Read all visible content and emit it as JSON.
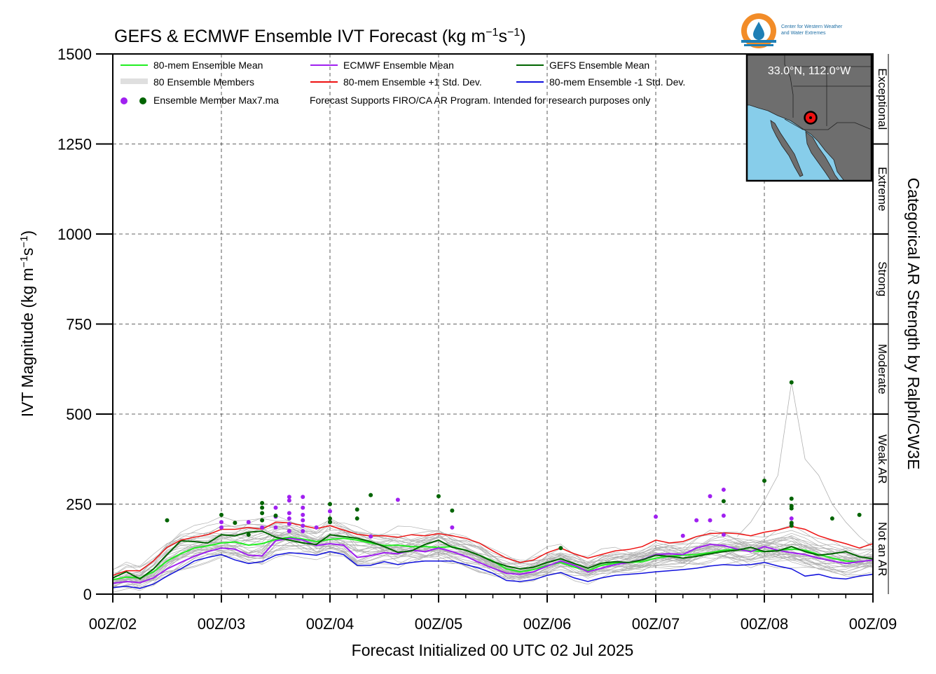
{
  "chart_data": {
    "type": "line",
    "title_main": "GEFS & ECMWF Ensemble IVT Forecast (kg m",
    "title_sup1": "−1",
    "title_mid": "s",
    "title_sup2": "−1",
    "title_end": ")",
    "ylabel_main": "IVT Magnitude (kg m",
    "ylabel_sup1": "−1",
    "ylabel_mid": "s",
    "ylabel_sup2": "−1",
    "ylabel_end": ")",
    "xlabel": "Forecast Initialized 00 UTC 02 Jul 2025",
    "right_axis_label": "Categorical AR Strength by Ralph/CW3E",
    "ylim": [
      0,
      1500
    ],
    "xlim": [
      0,
      168
    ],
    "grid": true,
    "y_ticks": [
      "0",
      "250",
      "500",
      "750",
      "1000",
      "1250",
      "1500"
    ],
    "x_ticks": [
      {
        "hour": 0,
        "label": "00Z/02"
      },
      {
        "hour": 24,
        "label": "00Z/03"
      },
      {
        "hour": 48,
        "label": "00Z/04"
      },
      {
        "hour": 72,
        "label": "00Z/05"
      },
      {
        "hour": 96,
        "label": "00Z/06"
      },
      {
        "hour": 120,
        "label": "00Z/07"
      },
      {
        "hour": 144,
        "label": "00Z/08"
      },
      {
        "hour": 168,
        "label": "00Z/09"
      }
    ],
    "categories_right": [
      {
        "label": "Not an AR",
        "range": [
          0,
          250
        ]
      },
      {
        "label": "Weak AR",
        "range": [
          250,
          500
        ]
      },
      {
        "label": "Moderate",
        "range": [
          500,
          750
        ]
      },
      {
        "label": "Strong",
        "range": [
          750,
          1000
        ]
      },
      {
        "label": "Extreme",
        "range": [
          1000,
          1250
        ]
      },
      {
        "label": "Exceptional",
        "range": [
          1250,
          1500
        ]
      }
    ],
    "legend": [
      {
        "label": "80-mem Ensemble Mean",
        "color": "#22ee22",
        "kind": "line"
      },
      {
        "label": "ECMWF Ensemble Mean",
        "color": "#a020f0",
        "kind": "line"
      },
      {
        "label": "GEFS Ensemble Mean",
        "color": "#006400",
        "kind": "line"
      },
      {
        "label": "80 Ensemble Members",
        "color": "#aaaaaa",
        "kind": "thin"
      },
      {
        "label": "80-mem Ensemble +1 Std. Dev.",
        "color": "#ee1111",
        "kind": "line"
      },
      {
        "label": "80-mem Ensemble -1 Std. Dev.",
        "color": "#1010dd",
        "kind": "line"
      },
      {
        "label": "Ensemble Member Max7.ma",
        "kind": "dots"
      }
    ],
    "note": "Forecast Supports FIRO/CA AR Program. Intended for research purposes only",
    "inset_label": "33.0°N, 112.0°W",
    "logo_text": [
      "Center for Western Weather",
      "and Water Extremes"
    ],
    "x": [
      0,
      3,
      6,
      9,
      12,
      15,
      18,
      21,
      24,
      27,
      30,
      33,
      36,
      39,
      42,
      45,
      48,
      51,
      54,
      57,
      60,
      63,
      66,
      69,
      72,
      75,
      78,
      81,
      84,
      87,
      90,
      93,
      96,
      99,
      102,
      105,
      108,
      111,
      114,
      117,
      120,
      123,
      126,
      129,
      132,
      135,
      138,
      141,
      144,
      147,
      150,
      153,
      156,
      159,
      162,
      165,
      168
    ],
    "series": [
      {
        "name": "80-mem Ensemble Mean",
        "color": "#22ee22",
        "width": 2,
        "values": [
          40,
          47,
          45,
          62,
          92,
          112,
          128,
          134,
          142,
          145,
          136,
          140,
          152,
          158,
          153,
          146,
          152,
          155,
          150,
          142,
          135,
          136,
          132,
          132,
          130,
          132,
          122,
          108,
          92,
          70,
          62,
          68,
          80,
          88,
          75,
          65,
          80,
          86,
          88,
          90,
          100,
          105,
          108,
          110,
          115,
          122,
          125,
          120,
          118,
          122,
          125,
          122,
          110,
          100,
          92,
          90,
          95
        ]
      },
      {
        "name": "ECMWF Ensemble Mean",
        "color": "#a020f0",
        "width": 2,
        "values": [
          30,
          35,
          32,
          45,
          70,
          88,
          105,
          118,
          128,
          125,
          108,
          106,
          148,
          155,
          150,
          135,
          140,
          136,
          102,
          107,
          115,
          112,
          122,
          118,
          128,
          118,
          105,
          88,
          72,
          58,
          55,
          62,
          78,
          92,
          80,
          62,
          72,
          82,
          88,
          96,
          110,
          112,
          110,
          128,
          138,
          135,
          125,
          118,
          132,
          122,
          115,
          110,
          100,
          92,
          85,
          90,
          95
        ]
      },
      {
        "name": "GEFS Ensemble Mean",
        "color": "#006400",
        "width": 2,
        "values": [
          45,
          62,
          42,
          70,
          110,
          148,
          146,
          142,
          165,
          162,
          172,
          175,
          158,
          150,
          142,
          138,
          165,
          160,
          155,
          146,
          132,
          116,
          120,
          138,
          150,
          130,
          122,
          108,
          90,
          78,
          70,
          75,
          88,
          98,
          85,
          72,
          86,
          90,
          88,
          95,
          108,
          105,
          100,
          105,
          112,
          118,
          122,
          130,
          118,
          120,
          132,
          118,
          108,
          112,
          118,
          104,
          98
        ]
      },
      {
        "name": "80-mem Ensemble +1 Std. Dev.",
        "color": "#ee1111",
        "width": 1.5,
        "values": [
          52,
          65,
          65,
          92,
          130,
          150,
          158,
          165,
          180,
          180,
          185,
          180,
          200,
          198,
          190,
          182,
          190,
          178,
          166,
          162,
          162,
          158,
          165,
          162,
          168,
          162,
          155,
          142,
          120,
          100,
          88,
          95,
          115,
          128,
          112,
          100,
          110,
          120,
          124,
          132,
          150,
          142,
          146,
          160,
          168,
          170,
          168,
          162,
          172,
          178,
          188,
          180,
          162,
          150,
          140,
          128,
          140
        ]
      },
      {
        "name": "80-mem Ensemble -1 Std. Dev.",
        "color": "#1010dd",
        "width": 1.5,
        "values": [
          18,
          22,
          16,
          28,
          50,
          70,
          92,
          102,
          110,
          95,
          85,
          90,
          108,
          115,
          112,
          108,
          118,
          110,
          80,
          80,
          90,
          82,
          88,
          92,
          92,
          92,
          82,
          72,
          58,
          38,
          35,
          40,
          52,
          60,
          45,
          35,
          45,
          52,
          55,
          58,
          62,
          65,
          68,
          72,
          78,
          82,
          80,
          82,
          88,
          78,
          70,
          50,
          55,
          45,
          42,
          50,
          55
        ]
      }
    ],
    "members": [
      [
        35,
        48,
        52,
        75,
        115,
        140,
        148,
        156,
        160,
        155,
        170,
        176,
        182,
        175,
        160,
        150,
        170,
        162,
        150,
        140,
        138,
        150,
        145,
        148,
        152,
        140,
        130,
        118,
        95,
        80,
        72,
        82,
        98,
        108,
        92,
        78,
        92,
        100,
        95,
        102,
        120,
        118,
        112,
        128,
        140,
        145,
        138,
        130,
        135,
        150,
        158,
        140,
        125,
        118,
        105,
        100,
        112
      ],
      [
        28,
        36,
        32,
        50,
        82,
        102,
        118,
        126,
        132,
        130,
        116,
        120,
        160,
        170,
        158,
        138,
        140,
        148,
        110,
        115,
        122,
        118,
        128,
        125,
        134,
        120,
        110,
        92,
        78,
        62,
        58,
        66,
        82,
        95,
        82,
        66,
        78,
        86,
        92,
        98,
        112,
        108,
        106,
        126,
        140,
        135,
        125,
        118,
        128,
        118,
        112,
        108,
        96,
        88,
        80,
        86,
        92
      ],
      [
        55,
        70,
        60,
        92,
        130,
        155,
        160,
        158,
        172,
        168,
        178,
        185,
        175,
        168,
        152,
        142,
        178,
        170,
        160,
        150,
        138,
        120,
        124,
        140,
        158,
        134,
        126,
        112,
        92,
        80,
        72,
        76,
        90,
        102,
        88,
        74,
        90,
        94,
        92,
        98,
        110,
        108,
        104,
        108,
        114,
        120,
        125,
        132,
        120,
        124,
        134,
        120,
        110,
        114,
        120,
        106,
        100
      ],
      [
        22,
        30,
        28,
        40,
        62,
        80,
        96,
        108,
        115,
        110,
        98,
        100,
        130,
        140,
        135,
        122,
        126,
        120,
        92,
        98,
        105,
        100,
        112,
        108,
        116,
        106,
        96,
        80,
        66,
        50,
        48,
        55,
        68,
        78,
        66,
        54,
        64,
        72,
        78,
        82,
        92,
        96,
        94,
        108,
        118,
        116,
        108,
        100,
        112,
        104,
        96,
        88,
        80,
        74,
        68,
        72,
        78
      ],
      [
        42,
        50,
        48,
        68,
        98,
        118,
        134,
        142,
        150,
        152,
        142,
        146,
        158,
        165,
        160,
        152,
        160,
        162,
        156,
        148,
        140,
        142,
        138,
        138,
        136,
        138,
        128,
        114,
        96,
        74,
        66,
        72,
        84,
        92,
        80,
        70,
        84,
        90,
        92,
        94,
        104,
        110,
        112,
        114,
        118,
        126,
        128,
        124,
        122,
        126,
        130,
        126,
        114,
        104,
        96,
        94,
        100
      ],
      [
        30,
        42,
        40,
        58,
        88,
        108,
        124,
        128,
        138,
        140,
        130,
        132,
        144,
        150,
        146,
        140,
        144,
        146,
        140,
        134,
        128,
        130,
        126,
        126,
        124,
        126,
        116,
        102,
        86,
        64,
        56,
        62,
        74,
        82,
        70,
        60,
        74,
        80,
        82,
        84,
        94,
        100,
        102,
        104,
        108,
        116,
        118,
        114,
        112,
        116,
        118,
        116,
        104,
        94,
        86,
        84,
        90
      ],
      [
        38,
        52,
        55,
        80,
        120,
        142,
        152,
        160,
        166,
        162,
        174,
        180,
        190,
        186,
        170,
        160,
        180,
        168,
        158,
        148,
        144,
        154,
        150,
        150,
        156,
        146,
        136,
        124,
        100,
        86,
        76,
        86,
        102,
        112,
        96,
        82,
        96,
        104,
        100,
        106,
        124,
        124,
        118,
        134,
        146,
        150,
        144,
        136,
        142,
        156,
        162,
        146,
        130,
        122,
        110,
        104,
        116
      ],
      [
        25,
        32,
        30,
        46,
        74,
        94,
        110,
        118,
        124,
        120,
        106,
        108,
        140,
        148,
        142,
        128,
        132,
        128,
        98,
        104,
        110,
        106,
        118,
        114,
        122,
        112,
        102,
        86,
        72,
        56,
        52,
        60,
        74,
        86,
        74,
        58,
        70,
        78,
        84,
        90,
        102,
        102,
        100,
        116,
        128,
        126,
        116,
        108,
        120,
        110,
        104,
        98,
        88,
        80,
        74,
        78,
        84
      ]
    ],
    "dots_ecmwf": [
      [
        24,
        200
      ],
      [
        24,
        185
      ],
      [
        30,
        200
      ],
      [
        33,
        185
      ],
      [
        36,
        240
      ],
      [
        36,
        215
      ],
      [
        36,
        185
      ],
      [
        39,
        270
      ],
      [
        39,
        260
      ],
      [
        39,
        225
      ],
      [
        39,
        210
      ],
      [
        39,
        195
      ],
      [
        39,
        175
      ],
      [
        42,
        270
      ],
      [
        42,
        240
      ],
      [
        42,
        220
      ],
      [
        42,
        205
      ],
      [
        42,
        190
      ],
      [
        42,
        175
      ],
      [
        45,
        185
      ],
      [
        48,
        230
      ],
      [
        48,
        200
      ],
      [
        57,
        160
      ],
      [
        63,
        262
      ],
      [
        75,
        185
      ],
      [
        120,
        215
      ],
      [
        126,
        162
      ],
      [
        129,
        205
      ],
      [
        132,
        272
      ],
      [
        132,
        205
      ],
      [
        135,
        290
      ],
      [
        135,
        218
      ],
      [
        135,
        165
      ],
      [
        150,
        210
      ],
      [
        150,
        195
      ]
    ],
    "dots_gefs": [
      [
        12,
        205
      ],
      [
        24,
        220
      ],
      [
        27,
        198
      ],
      [
        30,
        165
      ],
      [
        33,
        253
      ],
      [
        33,
        240
      ],
      [
        33,
        225
      ],
      [
        33,
        205
      ],
      [
        36,
        218
      ],
      [
        48,
        250
      ],
      [
        48,
        210
      ],
      [
        48,
        200
      ],
      [
        54,
        235
      ],
      [
        54,
        210
      ],
      [
        57,
        275
      ],
      [
        72,
        272
      ],
      [
        75,
        232
      ],
      [
        99,
        128
      ],
      [
        135,
        258
      ],
      [
        144,
        315
      ],
      [
        150,
        588
      ],
      [
        150,
        265
      ],
      [
        150,
        245
      ],
      [
        150,
        238
      ],
      [
        150,
        198
      ],
      [
        150,
        190
      ],
      [
        159,
        210
      ],
      [
        165,
        220
      ]
    ]
  }
}
